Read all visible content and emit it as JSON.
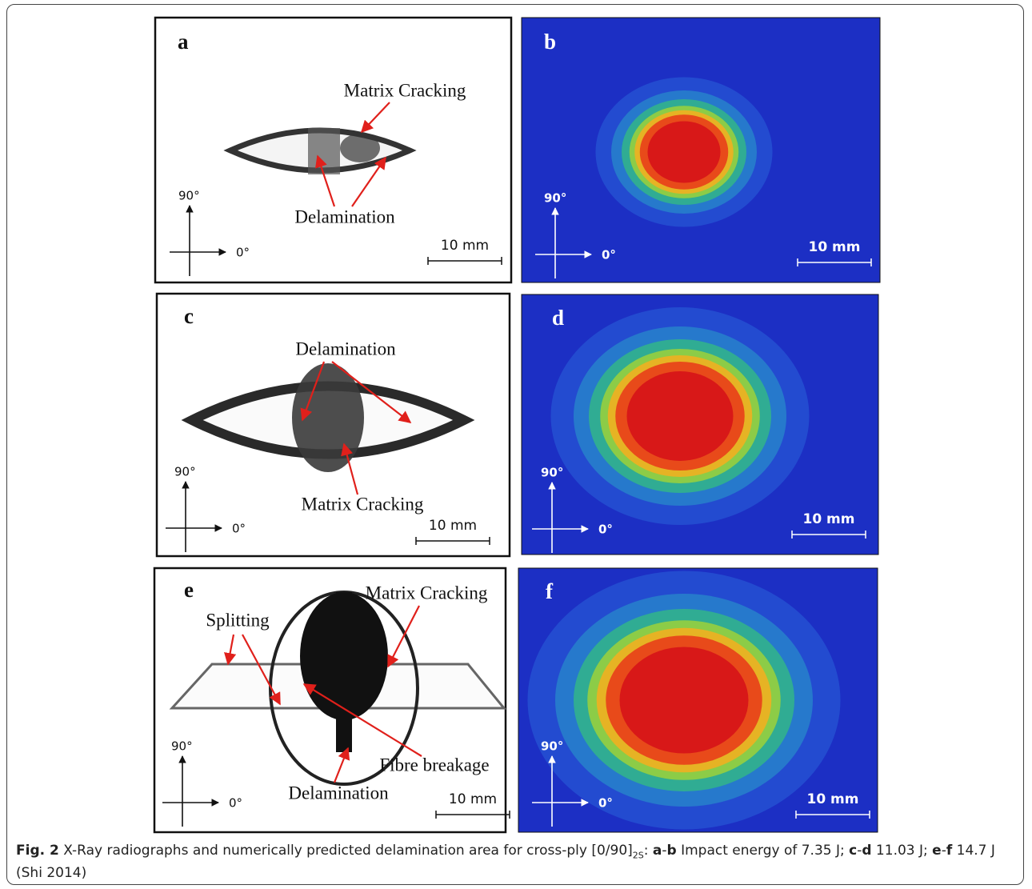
{
  "figure": {
    "panels": [
      {
        "label": "a",
        "annotations": [
          "Matrix Cracking",
          "Delamination"
        ],
        "axis_y": "90°",
        "axis_x": "0°",
        "scale_bar": "10 mm"
      },
      {
        "label": "b",
        "axis_y": "90°",
        "axis_x": "0°",
        "scale_bar": "10 mm"
      },
      {
        "label": "c",
        "annotations": [
          "Delamination",
          "Matrix Cracking"
        ],
        "axis_y": "90°",
        "axis_x": "0°",
        "scale_bar": "10 mm"
      },
      {
        "label": "d",
        "axis_y": "90°",
        "axis_x": "0°",
        "scale_bar": "10 mm"
      },
      {
        "label": "e",
        "annotations": [
          "Matrix Cracking",
          "Splitting",
          "Fibre breakage",
          "Delamination"
        ],
        "axis_y": "90°",
        "axis_x": "0°",
        "scale_bar": "10 mm"
      },
      {
        "label": "f",
        "axis_y": "90°",
        "axis_x": "0°",
        "scale_bar": "10 mm"
      }
    ],
    "caption": [
      "Fig. 2",
      " X-Ray radiographs and numerically predicted delamination area for cross-ply [0/90]",
      "2S",
      ": ",
      "a",
      "-",
      "b",
      " Impact energy of 7.35 J; ",
      "c",
      "-",
      "d",
      " 11.03 J; ",
      "e",
      "-",
      "f",
      " 14.7 J (Shi 2014)"
    ]
  }
}
